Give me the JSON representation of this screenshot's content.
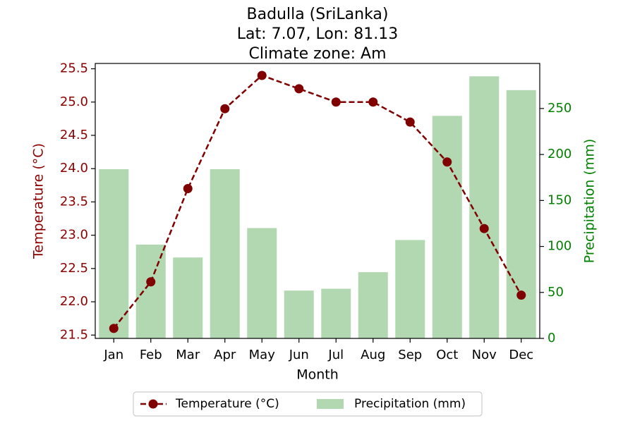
{
  "chart_data": {
    "type": "bar",
    "title_lines": [
      "Badulla (SriLanka)",
      "Lat: 7.07, Lon: 81.13",
      "Climate zone: Am"
    ],
    "xlabel": "Month",
    "categories": [
      "Jan",
      "Feb",
      "Mar",
      "Apr",
      "May",
      "Jun",
      "Jul",
      "Aug",
      "Sep",
      "Oct",
      "Nov",
      "Dec"
    ],
    "y_left": {
      "label": "Temperature (°C)",
      "ylim": [
        21.45,
        25.58
      ],
      "ticks": [
        21.5,
        22.0,
        22.5,
        23.0,
        23.5,
        24.0,
        24.5,
        25.0,
        25.5
      ],
      "tick_labels": [
        "21.5",
        "22.0",
        "22.5",
        "23.0",
        "23.5",
        "24.0",
        "24.5",
        "25.0",
        "25.5"
      ],
      "color": "#8b0000"
    },
    "y_right": {
      "label": "Precipitation (mm)",
      "ylim": [
        0,
        299
      ],
      "ticks": [
        0,
        50,
        100,
        150,
        200,
        250
      ],
      "tick_labels": [
        "0",
        "50",
        "100",
        "150",
        "200",
        "250"
      ],
      "color": "#008000"
    },
    "series": [
      {
        "name": "Temperature (°C)",
        "type": "line",
        "axis": "left",
        "style": "dashed",
        "marker": "circle",
        "color": "#800000",
        "values": [
          21.6,
          22.3,
          23.7,
          24.9,
          25.4,
          25.2,
          25.0,
          25.0,
          24.7,
          24.1,
          23.1,
          22.1
        ]
      },
      {
        "name": "Precipitation (mm)",
        "type": "bar",
        "axis": "right",
        "color": "#b2d8b2",
        "values": [
          184,
          102,
          88,
          184,
          120,
          52,
          54,
          72,
          107,
          242,
          285,
          270
        ]
      }
    ],
    "legend": {
      "position": "bottom-center",
      "entries": [
        "Temperature (°C)",
        "Precipitation (mm)"
      ]
    },
    "grid": false
  }
}
